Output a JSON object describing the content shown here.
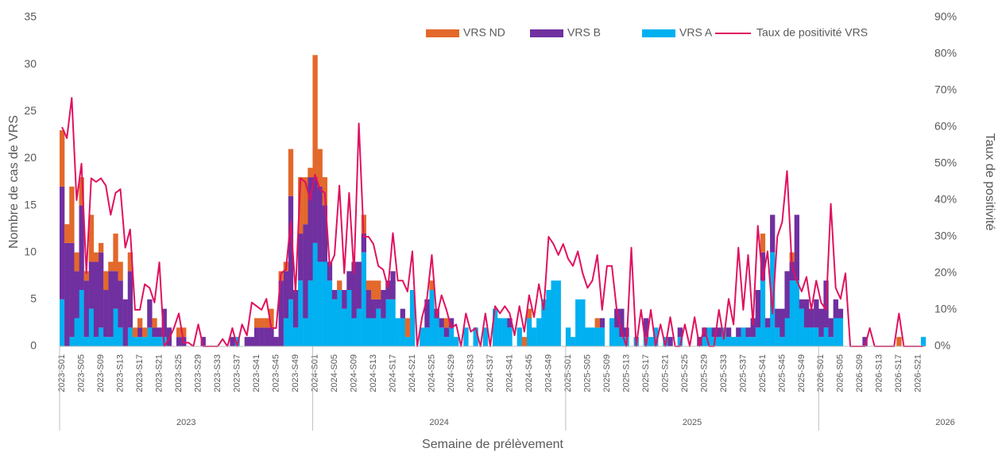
{
  "chart_data": {
    "type": "bar-line",
    "x_label": "Semaine de prélèvement",
    "y_label": "Nombre de cas de VRS",
    "y2_label": "Taux de positivité",
    "x_groups": [
      "2023",
      "2024",
      "2025",
      "2026"
    ],
    "categories": [
      "2023-S01",
      null,
      null,
      null,
      "2023-S05",
      null,
      null,
      null,
      "2023-S09",
      null,
      null,
      null,
      "2023-S13",
      null,
      null,
      null,
      "2023-S17",
      null,
      null,
      null,
      "2023-S21",
      null,
      null,
      null,
      "2023-S25",
      null,
      null,
      null,
      "2023-S29",
      null,
      null,
      null,
      "2023-S33",
      null,
      null,
      null,
      "2023-S37",
      null,
      null,
      null,
      "2023-S41",
      null,
      null,
      null,
      "2023-S45",
      null,
      null,
      null,
      "2023-S49",
      null,
      null,
      null,
      "2024-S01",
      null,
      null,
      null,
      "2024-S05",
      null,
      null,
      null,
      "2024-S09",
      null,
      null,
      null,
      "2024-S13",
      null,
      null,
      null,
      "2024-S17",
      null,
      null,
      null,
      "2024-S21",
      null,
      null,
      null,
      "2024-S25",
      null,
      null,
      null,
      "2024-S29",
      null,
      null,
      null,
      "2024-S33",
      null,
      null,
      null,
      "2024-S37",
      null,
      null,
      null,
      "2024-S41",
      null,
      null,
      null,
      "2024-S45",
      null,
      null,
      null,
      "2024-S49",
      null,
      null,
      null,
      "2025-S01",
      null,
      null,
      null,
      "2025-S05",
      null,
      null,
      null,
      "2025-S09",
      null,
      null,
      null,
      "2025-S13",
      null,
      null,
      null,
      "2025-S17",
      null,
      null,
      null,
      "2025-S21",
      null,
      null,
      null,
      "2025-S25",
      null,
      null,
      null,
      "2025-S29",
      null,
      null,
      null,
      "2025-S33",
      null,
      null,
      null,
      "2025-S37",
      null,
      null,
      null,
      "2025-S41",
      null,
      null,
      null,
      "2025-S45",
      null,
      null,
      null,
      "2025-S49",
      null,
      null,
      null,
      "2026-S01",
      null,
      null,
      null,
      "2026-S05",
      null,
      null,
      null,
      "2026-S09",
      null,
      null,
      null,
      "2026-S13",
      null,
      null,
      null,
      "2026-S17",
      null,
      null,
      null,
      "2026-S21",
      null
    ],
    "series": [
      {
        "name": "VRS A",
        "type": "bar",
        "color": "#00b0f0",
        "values": [
          5,
          0,
          1,
          3,
          6,
          1,
          4,
          1,
          2,
          1,
          1,
          4,
          2,
          0,
          2,
          1,
          1,
          1,
          2,
          1,
          1,
          1,
          0,
          0,
          0,
          0,
          0,
          0,
          0,
          0,
          0,
          0,
          0,
          0,
          0,
          0,
          1,
          0,
          0,
          0,
          0,
          0,
          0,
          0,
          0,
          0,
          3,
          5,
          2,
          7,
          3,
          7,
          11,
          9,
          9,
          7,
          5,
          6,
          4,
          6,
          3,
          4,
          10,
          3,
          3,
          4,
          3,
          5,
          5,
          3,
          3,
          1,
          6,
          0,
          2,
          2,
          6,
          3,
          2,
          1,
          2,
          1,
          0,
          2,
          0,
          2,
          0,
          2,
          0,
          4,
          3,
          3,
          2,
          0,
          2,
          0,
          3,
          2,
          3,
          5,
          6,
          7,
          7,
          0,
          2,
          1,
          5,
          5,
          2,
          2,
          2,
          2,
          0,
          3,
          2,
          1,
          1,
          0,
          1,
          0,
          1,
          1,
          2,
          0,
          1,
          0,
          0,
          1,
          0,
          0,
          0,
          0,
          1,
          2,
          1,
          1,
          2,
          1,
          1,
          1,
          2,
          1,
          1,
          2,
          7,
          2,
          10,
          2,
          1,
          3,
          7,
          7,
          4,
          2,
          2,
          2,
          1,
          2,
          1,
          3,
          3,
          0,
          0,
          0,
          0,
          0,
          0,
          0,
          0,
          0,
          0,
          0,
          0,
          0,
          0,
          0,
          0,
          1
        ]
      },
      {
        "name": "VRS B",
        "type": "bar",
        "color": "#7030a0",
        "values": [
          12,
          11,
          10,
          5,
          9,
          6,
          5,
          8,
          8,
          5,
          7,
          4,
          5,
          5,
          6,
          0,
          1,
          0,
          3,
          1,
          1,
          3,
          2,
          0,
          1,
          1,
          0,
          0,
          0,
          1,
          0,
          0,
          0,
          0,
          0,
          1,
          0,
          0,
          1,
          1,
          2,
          2,
          2,
          2,
          1,
          7,
          5,
          11,
          4,
          5,
          10,
          11,
          7,
          8,
          6,
          2,
          1,
          0,
          2,
          2,
          6,
          5,
          2,
          3,
          2,
          1,
          3,
          2,
          3,
          0,
          1,
          0,
          0,
          0,
          0,
          3,
          0,
          1,
          1,
          1,
          1,
          0,
          0,
          0,
          0,
          0,
          0,
          0,
          0,
          0,
          0,
          0,
          1,
          0,
          0,
          0,
          0,
          0,
          0,
          0,
          0,
          0,
          0,
          0,
          0,
          0,
          0,
          0,
          0,
          0,
          0,
          1,
          0,
          0,
          2,
          3,
          1,
          0,
          0,
          0,
          2,
          0,
          0,
          0,
          0,
          1,
          0,
          1,
          0,
          0,
          0,
          1,
          1,
          0,
          1,
          1,
          0,
          1,
          0,
          1,
          0,
          1,
          2,
          4,
          3,
          1,
          4,
          2,
          3,
          5,
          2,
          7,
          1,
          3,
          2,
          3,
          3,
          5,
          2,
          2,
          1,
          0,
          0,
          0,
          0,
          1,
          0,
          0,
          0,
          0,
          0,
          0,
          0,
          0,
          0,
          0,
          0,
          0
        ]
      },
      {
        "name": "VRS ND",
        "type": "bar",
        "color": "#e3682b",
        "values": [
          6,
          2,
          6,
          2,
          3,
          1,
          5,
          1,
          1,
          2,
          1,
          4,
          2,
          0,
          2,
          1,
          1,
          1,
          0,
          1,
          0,
          0,
          0,
          0,
          1,
          1,
          0,
          0,
          0,
          0,
          0,
          0,
          0,
          0,
          0,
          0,
          0,
          0,
          0,
          0,
          1,
          1,
          1,
          2,
          0,
          1,
          1,
          5,
          0,
          6,
          5,
          1,
          13,
          4,
          3,
          0,
          0,
          1,
          0,
          0,
          0,
          0,
          2,
          1,
          2,
          2,
          0,
          0,
          0,
          0,
          0,
          2,
          0,
          0,
          0,
          0,
          1,
          0,
          0,
          1,
          0,
          0,
          0,
          0,
          0,
          0,
          0,
          0,
          0,
          0,
          0,
          0,
          0,
          0,
          0,
          1,
          1,
          0,
          0,
          0,
          0,
          0,
          0,
          0,
          0,
          0,
          0,
          0,
          0,
          0,
          1,
          0,
          0,
          0,
          0,
          0,
          0,
          0,
          0,
          0,
          0,
          0,
          0,
          0,
          0,
          0,
          0,
          0,
          0,
          0,
          0,
          0,
          0,
          0,
          0,
          0,
          0,
          0,
          0,
          0,
          0,
          0,
          0,
          0,
          2,
          0,
          0,
          0,
          0,
          0,
          1,
          0,
          0,
          0,
          0,
          0,
          0,
          0,
          0,
          0,
          0,
          0,
          0,
          0,
          0,
          0,
          0,
          0,
          0,
          0,
          0,
          0,
          1,
          0,
          0,
          0,
          0,
          0
        ]
      },
      {
        "name": "Taux de positivité VRS",
        "type": "line",
        "axis": "y2",
        "color": "#e0115f",
        "values": [
          60,
          57,
          68,
          40,
          50,
          20,
          46,
          45,
          46,
          44,
          36,
          42,
          43,
          27,
          32,
          10,
          10,
          17,
          16,
          12,
          23,
          0,
          2,
          5,
          9,
          1,
          1,
          0,
          6,
          0,
          0,
          0,
          0,
          2,
          0,
          5,
          0,
          6,
          3,
          12,
          11,
          10,
          13,
          5,
          5,
          20,
          21,
          34,
          15,
          46,
          45,
          40,
          47,
          43,
          42,
          22,
          25,
          44,
          20,
          42,
          20,
          61,
          30,
          30,
          28,
          22,
          21,
          16,
          31,
          18,
          18,
          15,
          26,
          0,
          8,
          13,
          25,
          8,
          14,
          10,
          5,
          6,
          0,
          9,
          4,
          5,
          0,
          9,
          0,
          11,
          9,
          11,
          9,
          3,
          11,
          4,
          14,
          8,
          17,
          10,
          30,
          28,
          25,
          28,
          24,
          22,
          26,
          20,
          16,
          18,
          25,
          10,
          22,
          22,
          10,
          4,
          0,
          27,
          0,
          10,
          0,
          10,
          0,
          6,
          0,
          8,
          0,
          0,
          6,
          0,
          8,
          0,
          5,
          0,
          0,
          10,
          2,
          13,
          6,
          27,
          10,
          25,
          6,
          33,
          18,
          26,
          9,
          30,
          34,
          48,
          22,
          18,
          15,
          19,
          10,
          18,
          12,
          10,
          39,
          16,
          13,
          20,
          0,
          0,
          0,
          0,
          5,
          0,
          0,
          0,
          0,
          0,
          9,
          0,
          0,
          0,
          0,
          0
        ]
      }
    ],
    "ylim": [
      0,
      35
    ],
    "yticks": [
      0,
      5,
      10,
      15,
      20,
      25,
      30,
      35
    ],
    "y2lim": [
      0,
      90
    ],
    "y2ticks": [
      {
        "value": 0,
        "label": "0%"
      },
      {
        "value": 10,
        "label": "10%"
      },
      {
        "value": 20,
        "label": "20%"
      },
      {
        "value": 30,
        "label": "30%"
      },
      {
        "value": 40,
        "label": "40%"
      },
      {
        "value": 50,
        "label": "50%"
      },
      {
        "value": 60,
        "label": "60%"
      },
      {
        "value": 70,
        "label": "70%"
      },
      {
        "value": 80,
        "label": "80%"
      },
      {
        "value": 90,
        "label": "90%"
      }
    ],
    "grid": false,
    "legend": "top"
  }
}
